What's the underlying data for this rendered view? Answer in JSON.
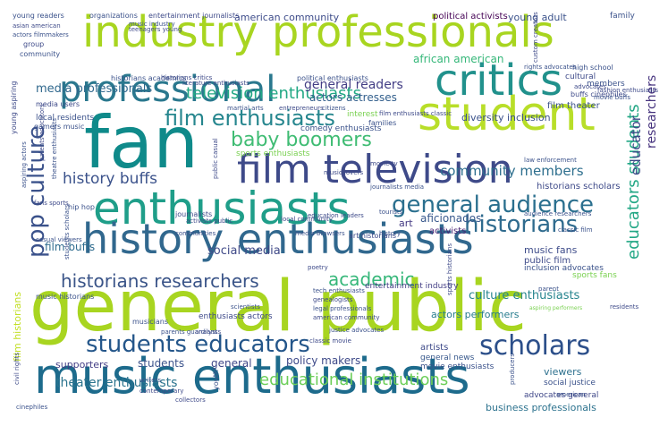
{
  "words": [
    {
      "text": "general public",
      "color": "#a8d520"
    },
    {
      "text": "fan",
      "color": "#0f8a8a"
    },
    {
      "text": "music enthusiasts",
      "color": "#1d6b8c"
    },
    {
      "text": "industry professionals",
      "color": "#a8d520"
    },
    {
      "text": "student",
      "color": "#b8de29"
    },
    {
      "text": "film television",
      "color": "#3e4a89"
    },
    {
      "text": "enthusiasts",
      "color": "#1f9e89"
    },
    {
      "text": "history enthusiasts",
      "color": "#31688e"
    },
    {
      "text": "professional",
      "color": "#2a788e"
    },
    {
      "text": "critics",
      "color": "#21918c"
    },
    {
      "text": "students educators",
      "color": "#24568a"
    },
    {
      "text": "general audience",
      "color": "#2a6f8e"
    },
    {
      "text": "pop culture",
      "color": "#3b528b"
    },
    {
      "text": "scholars",
      "color": "#2c4f8a"
    },
    {
      "text": "film enthusiasts",
      "color": "#26868e"
    },
    {
      "text": "baby boomers",
      "color": "#3fbc73"
    },
    {
      "text": "historians",
      "color": "#2f6b8e"
    },
    {
      "text": "historians researchers",
      "color": "#3a5488"
    },
    {
      "text": "television enthusiasts",
      "color": "#22a884"
    },
    {
      "text": "media professionals",
      "color": "#30688d"
    },
    {
      "text": "academic",
      "color": "#35b779"
    },
    {
      "text": "educational institutions",
      "color": "#6cce59"
    },
    {
      "text": "theater enthusiasts",
      "color": "#2b748e"
    },
    {
      "text": "educators students",
      "color": "#22a785"
    },
    {
      "text": "community members",
      "color": "#2e6f8e"
    },
    {
      "text": "history buffs",
      "color": "#3b528b"
    },
    {
      "text": "general readers",
      "color": "#433e85"
    },
    {
      "text": "actors actresses",
      "color": "#34608d"
    },
    {
      "text": "social media",
      "color": "#404a88"
    },
    {
      "text": "aficionados",
      "color": "#38588c"
    },
    {
      "text": "film buffs",
      "color": "#2f6c8e"
    },
    {
      "text": "culture enthusiasts",
      "color": "#25848e"
    },
    {
      "text": "music fans",
      "color": "#3e4c8a"
    },
    {
      "text": "public film",
      "color": "#3e4a89"
    },
    {
      "text": "american community",
      "color": "#3e4c8a"
    },
    {
      "text": "african american",
      "color": "#35b779"
    },
    {
      "text": "political activists",
      "color": "#440154"
    },
    {
      "text": "young adult",
      "color": "#3b528b"
    },
    {
      "text": "film historians",
      "color": "#c2df23"
    },
    {
      "text": "researchers",
      "color": "#46337e"
    },
    {
      "text": "educator",
      "color": "#3e4a89"
    },
    {
      "text": "business professionals",
      "color": "#2c728e"
    },
    {
      "text": "viewers",
      "color": "#2d708e"
    },
    {
      "text": "social justice",
      "color": "#3b528b"
    },
    {
      "text": "advocates general",
      "color": "#3f4788"
    },
    {
      "text": "entertainment industry",
      "color": "#433e85"
    },
    {
      "text": "actors performers",
      "color": "#287d8e"
    },
    {
      "text": "policy makers",
      "color": "#3e4a89"
    },
    {
      "text": "supporters",
      "color": "#433e85"
    },
    {
      "text": "students",
      "color": "#3b528b"
    },
    {
      "text": "general",
      "color": "#3f4788"
    },
    {
      "text": "artists",
      "color": "#3e4a89"
    },
    {
      "text": "general news",
      "color": "#38588c"
    },
    {
      "text": "movie enthusiasts",
      "color": "#3b528b"
    },
    {
      "text": "sports fans",
      "color": "#7ad151"
    },
    {
      "text": "inclusion advocates",
      "color": "#3b528b"
    },
    {
      "text": "activists",
      "color": "#482475"
    },
    {
      "text": "art",
      "color": "#443a83"
    },
    {
      "text": "diversity inclusion",
      "color": "#3b528b"
    },
    {
      "text": "film theater",
      "color": "#3b528b"
    },
    {
      "text": "historians scholars",
      "color": "#3e4a89"
    },
    {
      "text": "comedy enthusiasts",
      "color": "#3b528b"
    },
    {
      "text": "sports enthusiasts",
      "color": "#7ad151"
    },
    {
      "text": "local residents",
      "color": "#3b528b"
    },
    {
      "text": "gamers music",
      "color": "#3b528b"
    },
    {
      "text": "media users",
      "color": "#3e4a89"
    },
    {
      "text": "hip hop",
      "color": "#3b528b"
    },
    {
      "text": "journalists",
      "color": "#3e4a89"
    },
    {
      "text": "musicians",
      "color": "#3b528b"
    },
    {
      "text": "music historians",
      "color": "#3b528b"
    },
    {
      "text": "enthusiasts actors",
      "color": "#3e4a89"
    },
    {
      "text": "casual viewers",
      "color": "#3b528b"
    },
    {
      "text": "fans sports",
      "color": "#3e4a89"
    },
    {
      "text": "communities",
      "color": "#3b528b"
    },
    {
      "text": "local community",
      "color": "#3e4a89"
    },
    {
      "text": "members",
      "color": "#3b528b"
    },
    {
      "text": "cultural",
      "color": "#3e4a89"
    },
    {
      "text": "family",
      "color": "#3b528b"
    },
    {
      "text": "organizations",
      "color": "#3b528b"
    },
    {
      "text": "young readers",
      "color": "#3b528b"
    },
    {
      "text": "asian american",
      "color": "#3e4a89"
    },
    {
      "text": "actors filmmakers",
      "color": "#3b528b"
    },
    {
      "text": "group",
      "color": "#3e4a89"
    },
    {
      "text": "community",
      "color": "#3b528b"
    },
    {
      "text": "entertainment journalists",
      "color": "#3e4a89"
    },
    {
      "text": "music industry",
      "color": "#3b528b"
    },
    {
      "text": "high school",
      "color": "#3b528b"
    },
    {
      "text": "buffs cinephiles",
      "color": "#3e4a89"
    },
    {
      "text": "rights advocates",
      "color": "#3b528b"
    },
    {
      "text": "fashion enthusiasts",
      "color": "#3e4a89"
    },
    {
      "text": "movie buffs",
      "color": "#3b528b"
    },
    {
      "text": "advocates",
      "color": "#3e4a89"
    },
    {
      "text": "historians academics",
      "color": "#3b528b"
    },
    {
      "text": "historians critics",
      "color": "#3e4a89"
    },
    {
      "text": "political enthusiasts",
      "color": "#3b528b"
    },
    {
      "text": "literature enthusiasts",
      "color": "#3e4a89"
    },
    {
      "text": "martial arts",
      "color": "#3b528b"
    },
    {
      "text": "entrepreneurs",
      "color": "#3e4a89"
    },
    {
      "text": "citizens",
      "color": "#3b528b"
    },
    {
      "text": "interest",
      "color": "#7ad151"
    },
    {
      "text": "families",
      "color": "#3b528b"
    },
    {
      "text": "film enthusiasts classic",
      "color": "#3e4a89"
    },
    {
      "text": "law enforcement",
      "color": "#3b528b"
    },
    {
      "text": "music lovers",
      "color": "#3e4a89"
    },
    {
      "text": "journalists media",
      "color": "#3b528b"
    },
    {
      "text": "movie tv",
      "color": "#3e4a89"
    },
    {
      "text": "tourists",
      "color": "#3b528b"
    },
    {
      "text": "education leaders",
      "color": "#3e4a89"
    },
    {
      "text": "audience researchers",
      "color": "#3b528b"
    },
    {
      "text": "activists public",
      "color": "#3e4a89"
    },
    {
      "text": "media browsers",
      "color": "#3b528b"
    },
    {
      "text": "art historians",
      "color": "#3e4a89"
    },
    {
      "text": "history",
      "color": "#3b528b"
    },
    {
      "text": "poetry",
      "color": "#3e4a89"
    },
    {
      "text": "tech enthusiasts",
      "color": "#3b528b"
    },
    {
      "text": "genealogists",
      "color": "#3e4a89"
    },
    {
      "text": "legal professionals",
      "color": "#3b528b"
    },
    {
      "text": "american community",
      "color": "#3e4a89"
    },
    {
      "text": "justice advocates",
      "color": "#3b528b"
    },
    {
      "text": "classic movie",
      "color": "#3e4a89"
    },
    {
      "text": "parents guardians",
      "color": "#3b528b"
    },
    {
      "text": "analysts",
      "color": "#3e4a89"
    },
    {
      "text": "youth",
      "color": "#3b528b"
    },
    {
      "text": "collectors",
      "color": "#3e4a89"
    },
    {
      "text": "writers",
      "color": "#3b528b"
    },
    {
      "text": "contemporary",
      "color": "#3e4a89"
    },
    {
      "text": "cinephiles",
      "color": "#3b528b"
    },
    {
      "text": "civil rights",
      "color": "#3e4a89"
    },
    {
      "text": "american",
      "color": "#3b528b"
    },
    {
      "text": "residents",
      "color": "#3e4a89"
    },
    {
      "text": "parent",
      "color": "#3b528b"
    },
    {
      "text": "aspiring performers",
      "color": "#7ad151"
    },
    {
      "text": "scientists",
      "color": "#3b528b"
    },
    {
      "text": "young aspiring",
      "color": "#3e4a89"
    },
    {
      "text": "aspiring actors",
      "color": "#3b528b"
    },
    {
      "text": "parents educators",
      "color": "#3e4a89"
    },
    {
      "text": "theatre enthusiasts",
      "color": "#3b528b"
    },
    {
      "text": "public casual",
      "color": "#3e4a89"
    },
    {
      "text": "classic film",
      "color": "#3b528b"
    },
    {
      "text": "custom creators",
      "color": "#3e4a89"
    },
    {
      "text": "producers",
      "color": "#3b528b"
    },
    {
      "text": "sports historians",
      "color": "#3e4a89"
    },
    {
      "text": "students scholars",
      "color": "#3b528b"
    },
    {
      "text": "teenagers young",
      "color": "#3e4a89"
    },
    {
      "text": "media consumers",
      "color": "#3b528b"
    }
  ]
}
